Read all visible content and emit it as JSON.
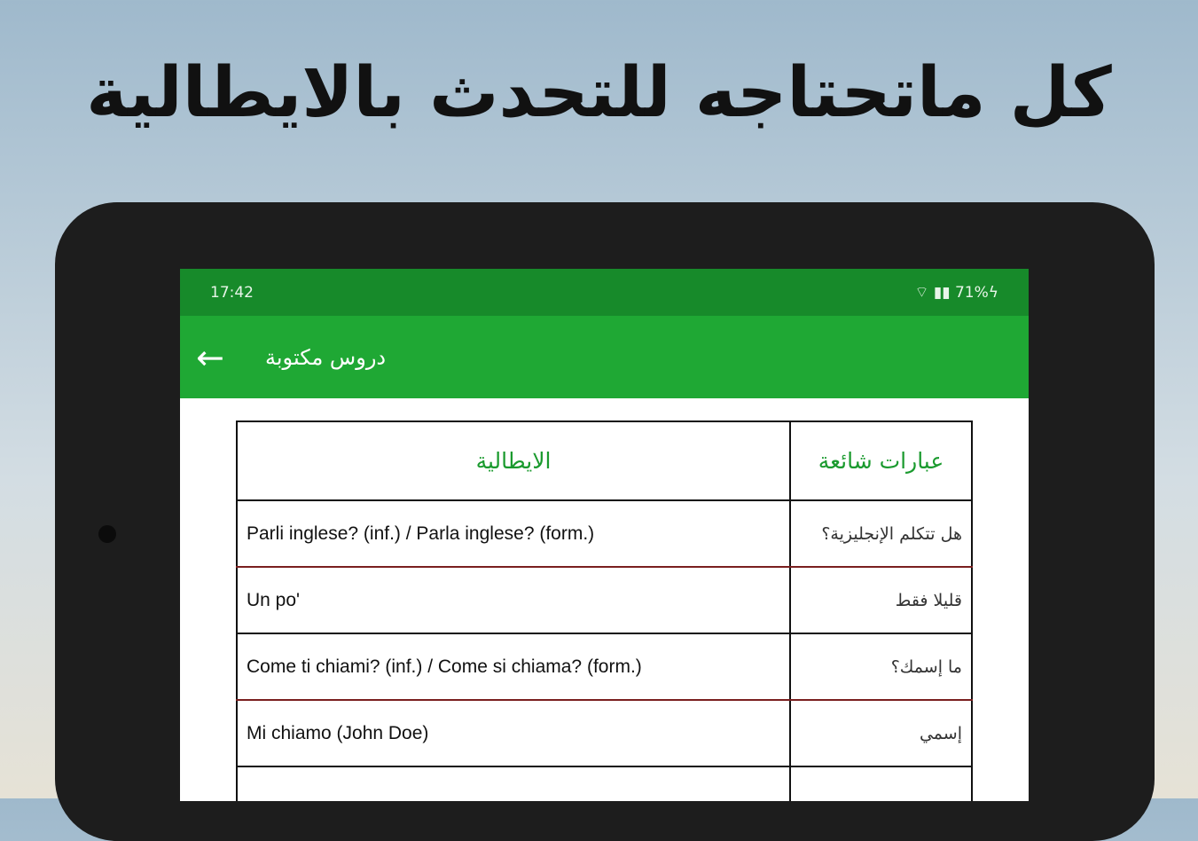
{
  "headline": "كل ماتحتاجه للتحدث بالايطالية",
  "status": {
    "time": "17:42",
    "indicators": "71%"
  },
  "appbar": {
    "title": "دروس مكتوبة"
  },
  "table": {
    "headers": [
      "الايطالية",
      "عبارات شائعة"
    ],
    "rows": [
      {
        "it": "Parli inglese? (inf.) / Parla inglese? (form.)",
        "ar": "هل تتكلم الإنجليزية؟"
      },
      {
        "it": "Un po'",
        "ar": "قليلا فقط"
      },
      {
        "it": "Come ti chiami? (inf.) / Come si chiama? (form.)",
        "ar": "ما إسمك؟"
      },
      {
        "it": "Mi chiamo (John Doe)",
        "ar": "إسمي"
      },
      {
        "it": "",
        "ar": ""
      }
    ]
  }
}
